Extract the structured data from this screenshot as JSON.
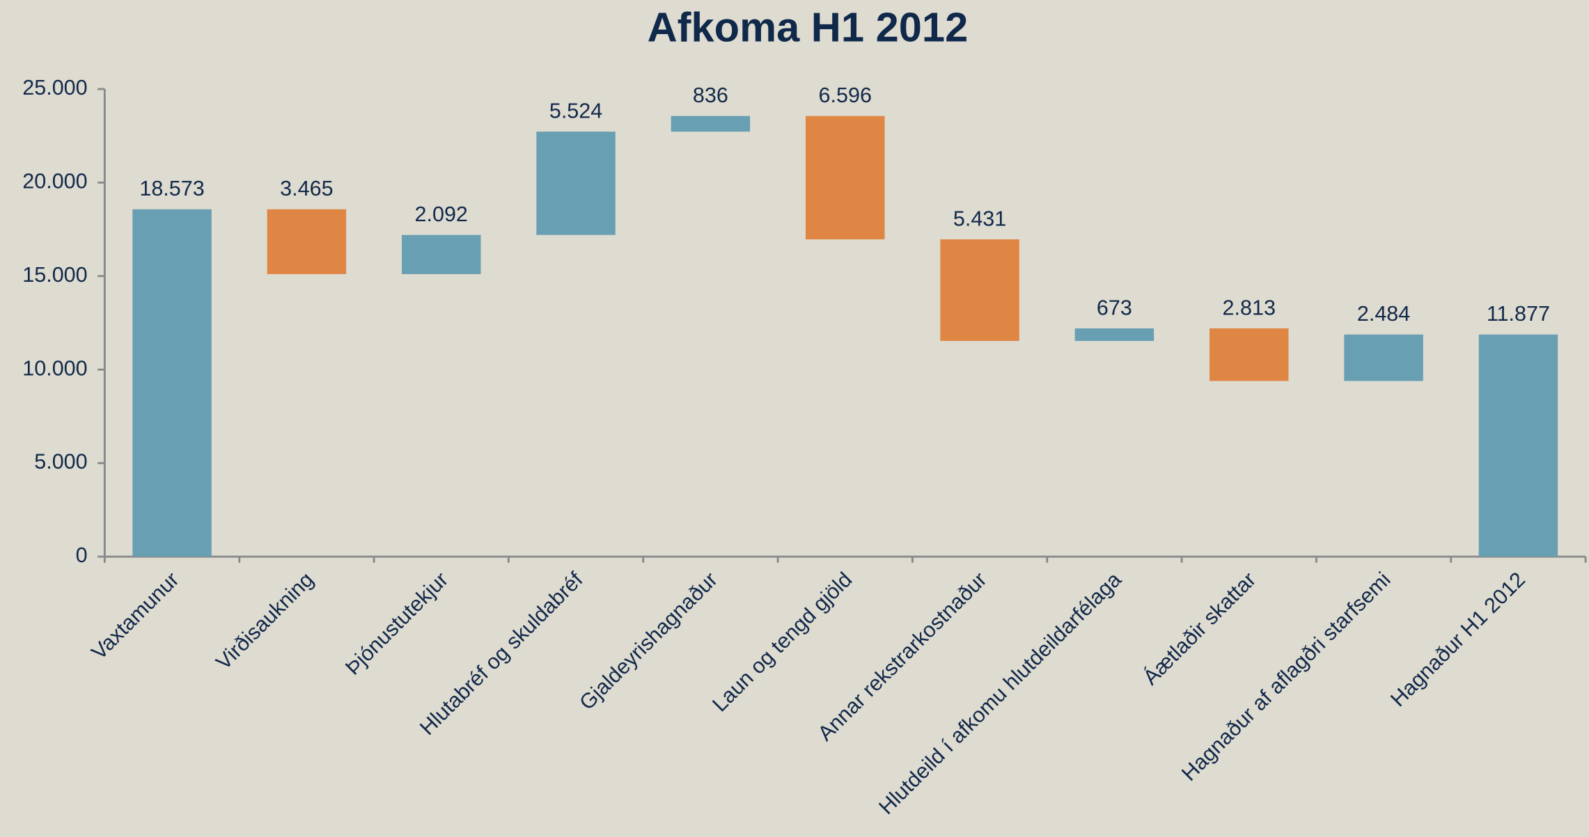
{
  "chart_data": {
    "type": "waterfall",
    "title": "Afkoma H1 2012",
    "categories": [
      "Vaxtamunur",
      "Virðisaukning",
      "Þjónustutekjur",
      "Hlutabréf og skuldabréf",
      "Gjaldeyrishagnaður",
      "Laun og tengd gjöld",
      "Annar rekstrarkostnaður",
      "Hlutdeild í afkomu hlutdeildarfélaga",
      "Áætlaðir skattar",
      "Hagnaður af aflagðri starfsemi",
      "Hagnaður H1 2012"
    ],
    "values": [
      18573,
      3465,
      2092,
      5524,
      836,
      6596,
      5431,
      673,
      2813,
      2484,
      11877
    ],
    "value_labels": [
      "18.573",
      "3.465",
      "2.092",
      "5.524",
      "836",
      "6.596",
      "5.431",
      "673",
      "2.813",
      "2.484",
      "11.877"
    ],
    "measure": [
      "total",
      "decrease",
      "increase",
      "increase",
      "increase",
      "decrease",
      "decrease",
      "increase",
      "decrease",
      "increase",
      "total"
    ],
    "colors": {
      "total": "#699fb2",
      "increase": "#699fb2",
      "decrease": "#e08644"
    },
    "ylim": [
      0,
      25000
    ],
    "yticks": [
      0,
      {
        "value": 5000,
        "label": "5.000"
      },
      {
        "value": 10000,
        "label": "10.000"
      },
      {
        "value": 15000,
        "label": "15.000"
      },
      {
        "value": 20000,
        "label": "20.000"
      },
      {
        "value": 25000,
        "label": "25.000"
      }
    ],
    "grid": false
  }
}
